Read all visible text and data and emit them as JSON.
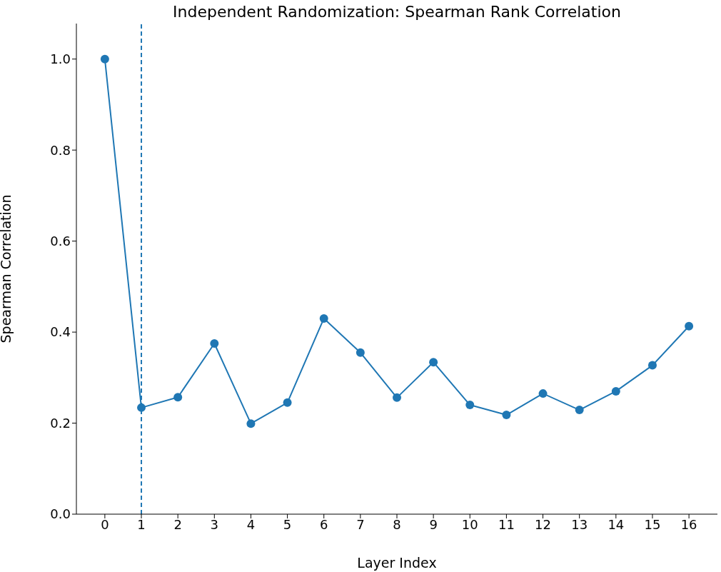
{
  "chart_data": {
    "type": "line",
    "title": "Independent Randomization: Spearman Rank Correlation",
    "xlabel": "Layer Index",
    "ylabel": "Spearman Correlation",
    "x": [
      0,
      1,
      2,
      3,
      4,
      5,
      6,
      7,
      8,
      9,
      10,
      11,
      12,
      13,
      14,
      15,
      16
    ],
    "values": [
      1.0,
      0.234,
      0.257,
      0.375,
      0.199,
      0.245,
      0.43,
      0.355,
      0.256,
      0.334,
      0.24,
      0.218,
      0.265,
      0.229,
      0.27,
      0.327,
      0.413
    ],
    "color": "#1f77b4",
    "marker": "circle",
    "xlim": [
      -0.78,
      16.78
    ],
    "xticks": [
      0,
      1,
      2,
      3,
      4,
      5,
      6,
      7,
      8,
      9,
      10,
      11,
      12,
      13,
      14,
      15,
      16
    ],
    "ylim": [
      0,
      1.078
    ],
    "yticks": [
      {
        "value": 0,
        "label": "0.0"
      },
      0.2,
      0.4,
      0.6,
      0.8,
      {
        "value": 1,
        "label": "1.0"
      }
    ],
    "ref_lines": [
      {
        "axis": "x",
        "value": 1,
        "color": "#1f77b4",
        "line_style": "dashed"
      }
    ]
  }
}
